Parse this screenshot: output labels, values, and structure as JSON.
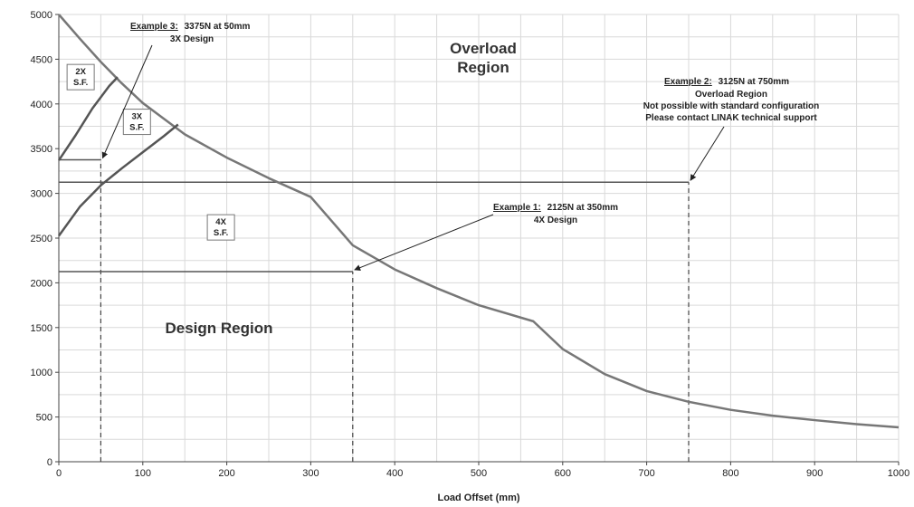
{
  "chart_data": {
    "type": "line",
    "xlabel": "Load Offset (mm)",
    "ylabel": "",
    "xlim": [
      0,
      1000
    ],
    "ylim": [
      0,
      5000
    ],
    "x_ticks": [
      "0",
      "100",
      "200",
      "300",
      "400",
      "500",
      "600",
      "700",
      "800",
      "900",
      "1000"
    ],
    "y_ticks": [
      "0",
      "500",
      "1000",
      "1500",
      "2000",
      "2500",
      "3000",
      "3500",
      "4000",
      "4500",
      "5000"
    ],
    "grid": true,
    "series": [
      {
        "x": [
          0,
          25,
          50,
          75,
          100,
          150,
          200,
          250,
          300,
          350,
          400,
          450,
          500,
          565,
          600,
          650,
          700,
          750,
          800,
          850,
          900,
          950,
          1000
        ],
        "y": [
          5000,
          4730,
          4470,
          4230,
          4010,
          3660,
          3400,
          3170,
          2960,
          2420,
          2150,
          1940,
          1750,
          1570,
          1260,
          980,
          790,
          670,
          580,
          515,
          465,
          420,
          385
        ],
        "color": "#777777"
      },
      {
        "x": [
          0,
          20,
          40,
          60,
          70
        ],
        "y": [
          3370,
          3650,
          3950,
          4200,
          4300
        ],
        "color": "#555555"
      },
      {
        "x": [
          0,
          25,
          50,
          75,
          100,
          125,
          142
        ],
        "y": [
          2525,
          2850,
          3090,
          3280,
          3460,
          3640,
          3770
        ],
        "color": "#555555"
      }
    ],
    "reference_lines": [
      {
        "type": "horizontal",
        "y": 3375,
        "x_range": [
          0,
          50
        ]
      },
      {
        "type": "vertical",
        "x": 50,
        "y_range": [
          0,
          3375
        ],
        "dashed": true
      },
      {
        "type": "horizontal",
        "y": 3125,
        "x_range": [
          0,
          750
        ]
      },
      {
        "type": "vertical",
        "x": 750,
        "y_range": [
          0,
          3125
        ],
        "dashed": true
      },
      {
        "type": "horizontal",
        "y": 2125,
        "x_range": [
          0,
          350
        ]
      },
      {
        "type": "vertical",
        "x": 350,
        "y_range": [
          0,
          2125
        ],
        "dashed": true
      }
    ],
    "regions": {
      "overload": [
        "Overload",
        "Region"
      ],
      "design": "Design Region"
    },
    "safety_factor_boxes": [
      {
        "lines": [
          "2X",
          "S.F."
        ],
        "x": 26,
        "y": 4300
      },
      {
        "lines": [
          "3X",
          "S.F."
        ],
        "x": 93,
        "y": 3800
      },
      {
        "lines": [
          "4X",
          "S.F."
        ],
        "x": 193,
        "y": 2620
      }
    ],
    "annotations": [
      {
        "underlined": "Example 3:",
        "rest": "3375N at 50mm",
        "lines": [
          "3X Design"
        ],
        "arrow_to": [
          50,
          3375
        ]
      },
      {
        "underlined": "Example 2:",
        "rest": "3125N at 750mm",
        "lines": [
          "Overload Region",
          "Not possible with standard configuration",
          "Please contact LINAK technical support"
        ],
        "arrow_to": [
          750,
          3125
        ]
      },
      {
        "underlined": "Example 1:",
        "rest": "2125N at 350mm",
        "lines": [
          "4X Design"
        ],
        "arrow_to": [
          350,
          2125
        ]
      }
    ]
  }
}
